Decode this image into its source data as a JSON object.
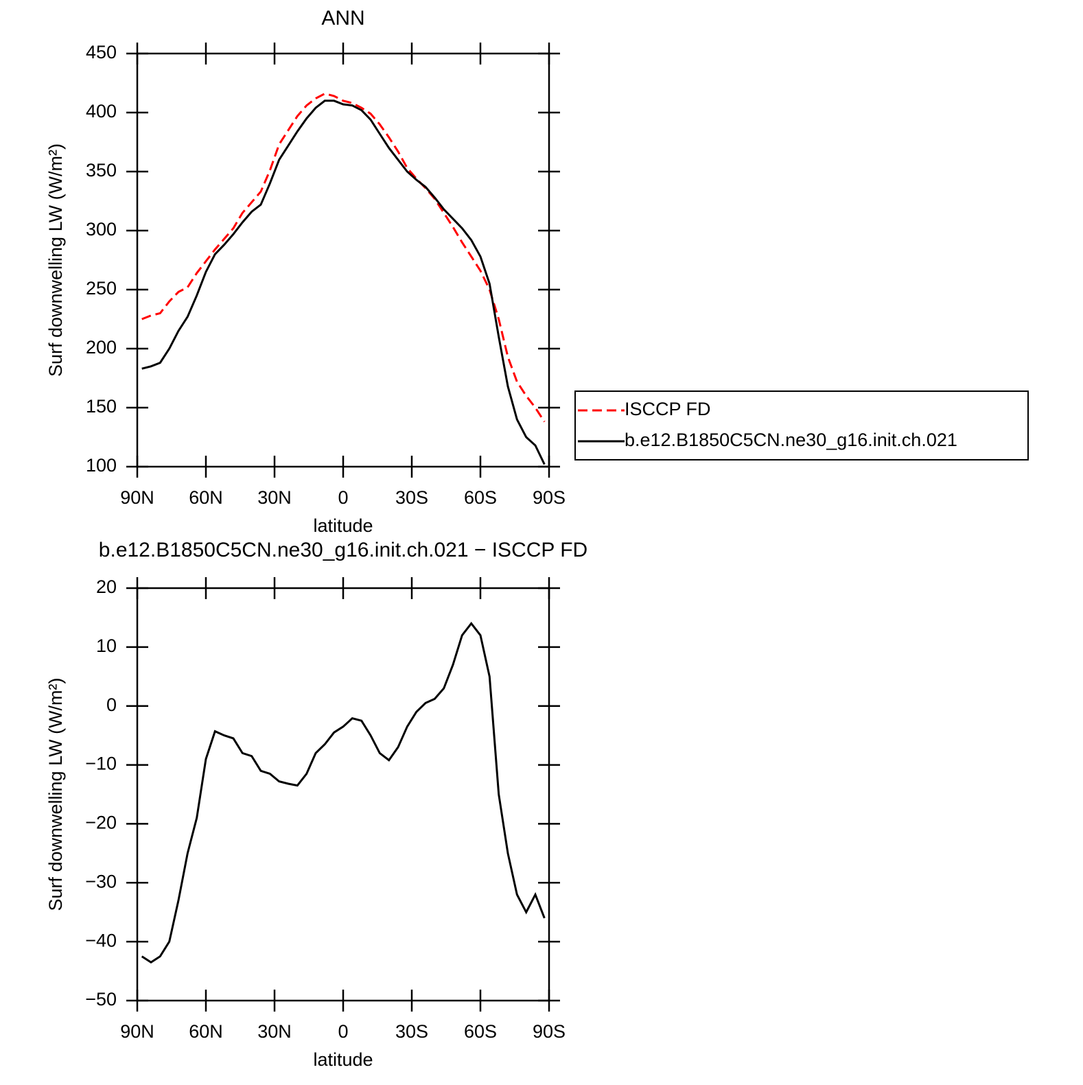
{
  "chart_data": [
    {
      "type": "line",
      "title": "ANN",
      "xlabel": "latitude",
      "ylabel": "Surf downwelling LW (W/m²)",
      "x": [
        88,
        84,
        80,
        76,
        72,
        68,
        64,
        60,
        56,
        52,
        48,
        44,
        40,
        36,
        32,
        28,
        24,
        20,
        16,
        12,
        8,
        4,
        0,
        -4,
        -8,
        -12,
        -16,
        -20,
        -24,
        -28,
        -32,
        -36,
        -40,
        -44,
        -48,
        -52,
        -56,
        -60,
        -64,
        -68,
        -72,
        -76,
        -80,
        -84,
        -88
      ],
      "xlim": [
        90,
        -90
      ],
      "xticks": [
        {
          "value": 90,
          "label": "90N"
        },
        {
          "value": 60,
          "label": "60N"
        },
        {
          "value": 30,
          "label": "30N"
        },
        0,
        {
          "value": -30,
          "label": "30S"
        },
        {
          "value": -60,
          "label": "60S"
        },
        {
          "value": -90,
          "label": "90S"
        }
      ],
      "ylim": [
        100,
        450
      ],
      "yticks": [
        100,
        150,
        200,
        250,
        300,
        350,
        400,
        450
      ],
      "legend": "right",
      "series": [
        {
          "name": "ISCCP FD",
          "color": "#ff0000",
          "dash": true,
          "values": [
            225,
            228,
            230,
            240,
            248,
            252,
            264,
            274,
            284,
            293,
            302,
            315,
            324,
            333,
            351,
            373,
            385,
            397,
            406,
            412,
            416,
            414,
            410,
            408,
            404,
            399,
            390,
            379,
            367,
            353,
            344,
            336,
            327,
            315,
            303,
            290,
            278,
            266,
            250,
            225,
            193,
            172,
            160,
            150,
            138
          ]
        },
        {
          "name": "b.e12.B1850C5CN.ne30_g16.init.ch.021",
          "color": "#000000",
          "dash": false,
          "values": [
            183,
            185,
            188,
            200,
            215,
            227,
            245,
            265,
            280,
            288,
            297,
            307,
            316,
            322,
            340,
            360,
            372,
            384,
            395,
            404,
            410,
            410,
            407,
            406,
            402,
            394,
            382,
            370,
            360,
            350,
            343,
            337,
            328,
            318,
            310,
            302,
            292,
            278,
            255,
            210,
            168,
            140,
            125,
            118,
            102
          ]
        }
      ]
    },
    {
      "type": "line",
      "title": "b.e12.B1850C5CN.ne30_g16.init.ch.021 − ISCCP FD",
      "xlabel": "latitude",
      "ylabel": "Surf downwelling LW (W/m²)",
      "x": [
        88,
        84,
        80,
        76,
        72,
        68,
        64,
        60,
        56,
        52,
        48,
        44,
        40,
        36,
        32,
        28,
        24,
        20,
        16,
        12,
        8,
        4,
        0,
        -4,
        -8,
        -12,
        -16,
        -20,
        -24,
        -28,
        -32,
        -36,
        -40,
        -44,
        -48,
        -52,
        -56,
        -60,
        -64,
        -68,
        -72,
        -76,
        -80,
        -84,
        -88
      ],
      "xlim": [
        90,
        -90
      ],
      "xticks": [
        {
          "value": 90,
          "label": "90N"
        },
        {
          "value": 60,
          "label": "60N"
        },
        {
          "value": 30,
          "label": "30N"
        },
        0,
        {
          "value": -30,
          "label": "30S"
        },
        {
          "value": -60,
          "label": "60S"
        },
        {
          "value": -90,
          "label": "90S"
        }
      ],
      "ylim": [
        -50,
        20
      ],
      "yticks": [
        {
          "value": -50,
          "label": "−50"
        },
        {
          "value": -40,
          "label": "−40"
        },
        {
          "value": -30,
          "label": "−30"
        },
        {
          "value": -20,
          "label": "−20"
        },
        {
          "value": -10,
          "label": "−10"
        },
        0,
        10,
        20
      ],
      "series": [
        {
          "color": "#000000",
          "dash": false,
          "values": [
            -42.5,
            -43.5,
            -42.5,
            -40,
            -33,
            -25,
            -19,
            -9,
            -4.3,
            -5,
            -5.5,
            -8,
            -8.5,
            -11,
            -11.5,
            -12.8,
            -13.2,
            -13.5,
            -11.5,
            -8,
            -6.5,
            -4.5,
            -3.5,
            -2.1,
            -2.5,
            -5,
            -8,
            -9.2,
            -7,
            -3.5,
            -1,
            0.5,
            1.2,
            3,
            7,
            12,
            14,
            12,
            5,
            -15,
            -25,
            -32,
            -35,
            -32,
            -36
          ]
        }
      ]
    }
  ]
}
